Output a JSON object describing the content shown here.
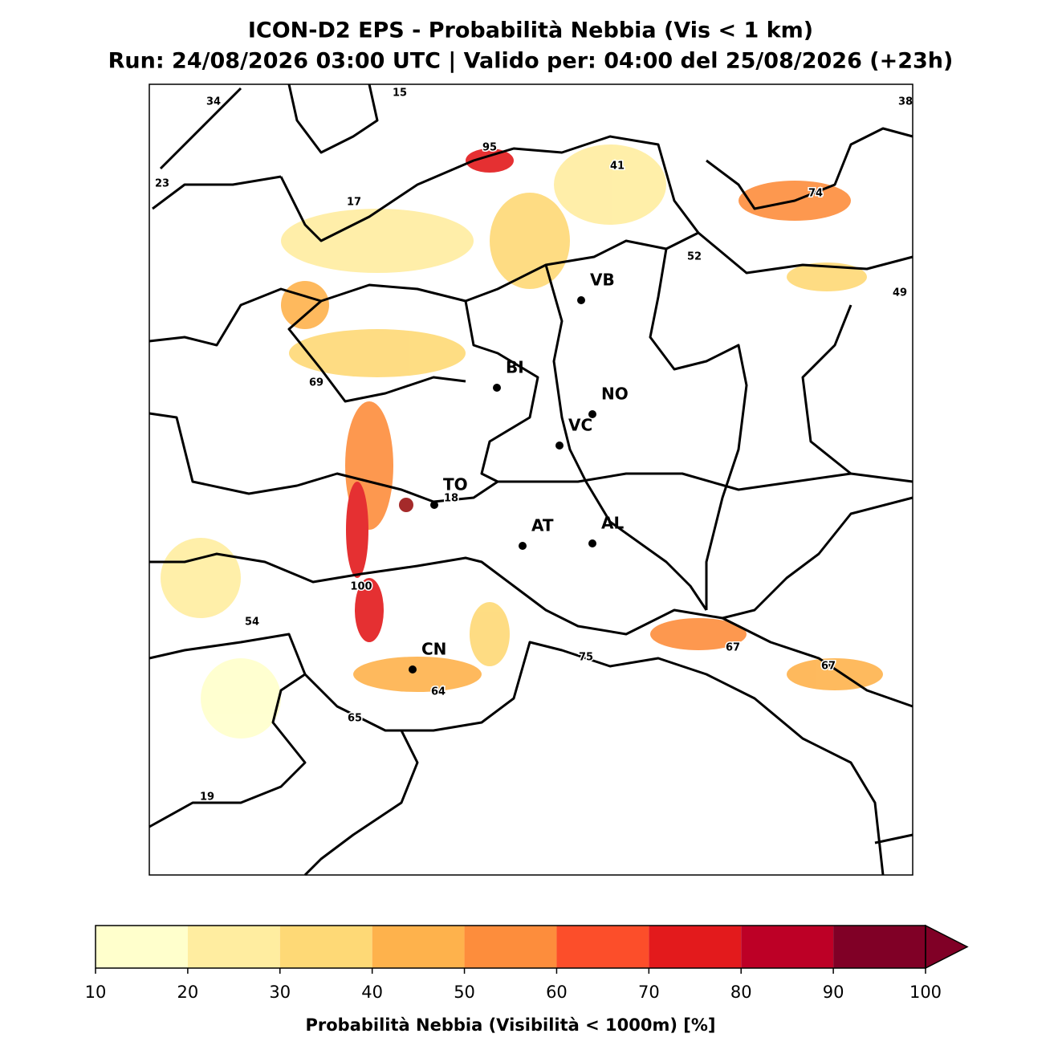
{
  "title": "ICON-D2 EPS - Probabilità Nebbia (Vis < 1 km)",
  "subtitle": "Run: 24/08/2026 03:00 UTC | Valido per: 04:00 del 25/08/2026 (+23h)",
  "cities": [
    "VB",
    "BI",
    "NO",
    "VC",
    "TO",
    "AT",
    "AL",
    "CN"
  ],
  "max_labels": [
    34,
    15,
    38,
    95,
    41,
    23,
    17,
    74,
    52,
    49,
    69,
    18,
    100,
    54,
    75,
    67,
    67,
    64,
    65,
    19
  ],
  "colorbar": {
    "label": "Probabilità Nebbia (Visibilità < 1000m) [%]",
    "ticks": [
      10,
      20,
      30,
      40,
      50,
      60,
      70,
      80,
      90,
      100
    ],
    "colors": [
      "#ffffcc",
      "#ffeda0",
      "#fed976",
      "#feb24c",
      "#fd8d3c",
      "#fc4e2a",
      "#e31a1c",
      "#bd0026",
      "#800026"
    ],
    "extend": "max"
  }
}
